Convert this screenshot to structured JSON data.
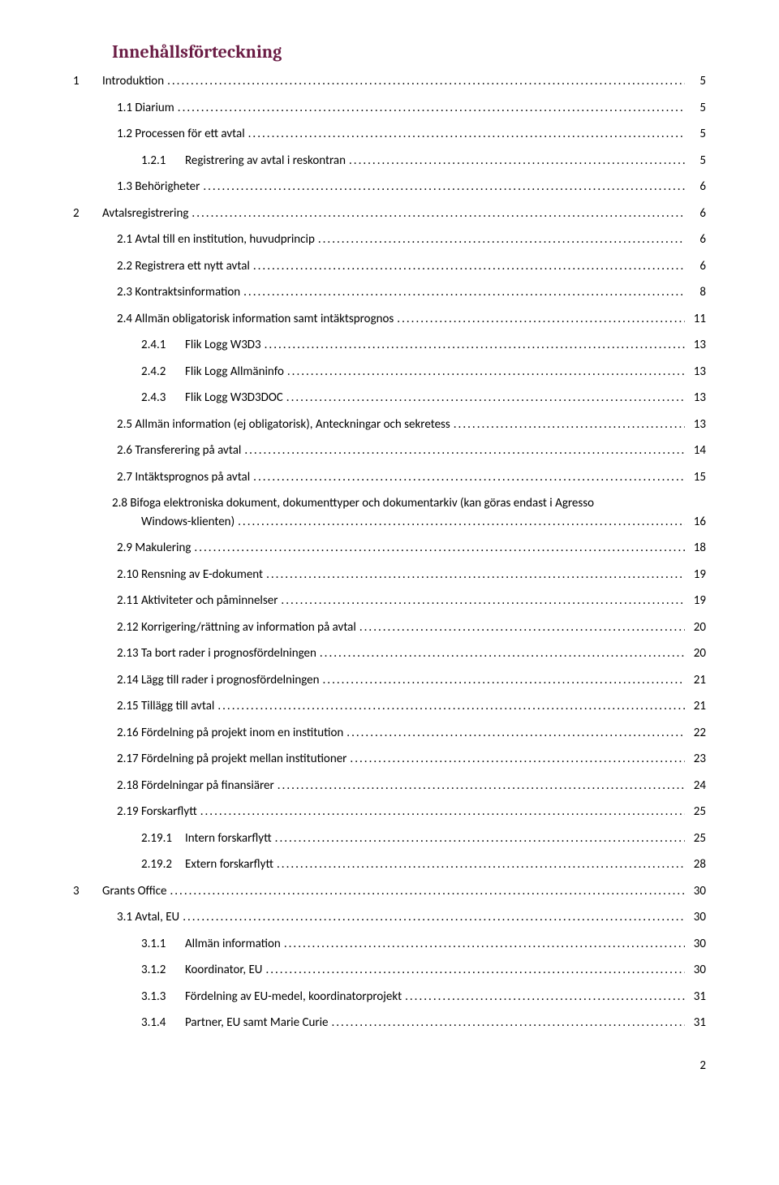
{
  "title": "Innehållsförteckning",
  "title_color": "#6b1d45",
  "text_color": "#000000",
  "background_color": "#ffffff",
  "font_body": "Calibri",
  "font_title": "Cambria",
  "font_title_size": 22,
  "font_body_size": 15,
  "footer_page_number": "2",
  "entries": [
    {
      "level": 0,
      "num": "1",
      "label": "Introduktion",
      "page": "5"
    },
    {
      "level": 1,
      "num": "1.1",
      "label": "Diarium",
      "page": "5"
    },
    {
      "level": 1,
      "num": "1.2",
      "label": "Processen för ett avtal",
      "page": "5"
    },
    {
      "level": 2,
      "num": "1.2.1",
      "label": "Registrering av avtal i reskontran",
      "page": "5"
    },
    {
      "level": 1,
      "num": "1.3",
      "label": "Behörigheter",
      "page": "6"
    },
    {
      "level": 0,
      "num": "2",
      "label": "Avtalsregistrering",
      "page": "6"
    },
    {
      "level": 1,
      "num": "2.1",
      "label": "Avtal till en institution, huvudprincip",
      "page": "6"
    },
    {
      "level": 1,
      "num": "2.2",
      "label": "Registrera ett nytt avtal",
      "page": "6"
    },
    {
      "level": 1,
      "num": "2.3",
      "label": "Kontraktsinformation",
      "page": "8"
    },
    {
      "level": 1,
      "num": "2.4",
      "label": "Allmän obligatorisk information samt intäktsprognos",
      "page": "11"
    },
    {
      "level": 2,
      "num": "2.4.1",
      "label": "Flik Logg W3D3",
      "page": "13"
    },
    {
      "level": 2,
      "num": "2.4.2",
      "label": "Flik Logg Allmäninfo",
      "page": "13"
    },
    {
      "level": 2,
      "num": "2.4.3",
      "label": "Flik Logg W3D3DOC",
      "page": "13"
    },
    {
      "level": 1,
      "num": "2.5",
      "label": "Allmän information (ej obligatorisk), Anteckningar och sekretess",
      "page": "13"
    },
    {
      "level": 1,
      "num": "2.6",
      "label": "Transferering på avtal",
      "page": "14"
    },
    {
      "level": 1,
      "num": "2.7",
      "label": "Intäktsprognos på avtal",
      "page": "15"
    },
    {
      "level": 1,
      "num": "2.8",
      "label": "Bifoga elektroniska dokument, dokumenttyper och dokumentarkiv (kan göras endast i Agresso Windows-klienten)",
      "page": "16",
      "multiline": true
    },
    {
      "level": 1,
      "num": "2.9",
      "label": "Makulering",
      "page": "18"
    },
    {
      "level": 1,
      "num": "2.10",
      "label": "Rensning av E-dokument",
      "page": "19"
    },
    {
      "level": 1,
      "num": "2.11",
      "label": "Aktiviteter och påminnelser",
      "page": "19"
    },
    {
      "level": 1,
      "num": "2.12",
      "label": "Korrigering/rättning av information på avtal",
      "page": "20"
    },
    {
      "level": 1,
      "num": "2.13",
      "label": "Ta bort rader i prognosfördelningen",
      "page": "20"
    },
    {
      "level": 1,
      "num": "2.14",
      "label": "Lägg till rader i prognosfördelningen",
      "page": "21"
    },
    {
      "level": 1,
      "num": "2.15",
      "label": "Tillägg till avtal",
      "page": "21"
    },
    {
      "level": 1,
      "num": "2.16",
      "label": "Fördelning på projekt inom en institution",
      "page": "22"
    },
    {
      "level": 1,
      "num": "2.17",
      "label": "Fördelning på projekt mellan institutioner",
      "page": "23"
    },
    {
      "level": 1,
      "num": "2.18",
      "label": "Fördelningar på finansiärer",
      "page": "24"
    },
    {
      "level": 1,
      "num": "2.19",
      "label": "Forskarflytt",
      "page": "25"
    },
    {
      "level": 2,
      "num": "2.19.1",
      "label": "Intern forskarflytt",
      "page": "25"
    },
    {
      "level": 2,
      "num": "2.19.2",
      "label": "Extern forskarflytt",
      "page": "28"
    },
    {
      "level": 0,
      "num": "3",
      "label": "Grants Office",
      "page": "30"
    },
    {
      "level": 1,
      "num": "3.1",
      "label": "Avtal, EU",
      "page": "30"
    },
    {
      "level": 2,
      "num": "3.1.1",
      "label": "Allmän information",
      "page": "30"
    },
    {
      "level": 2,
      "num": "3.1.2",
      "label": "Koordinator, EU",
      "page": "30"
    },
    {
      "level": 2,
      "num": "3.1.3",
      "label": "Fördelning av EU-medel, koordinatorprojekt",
      "page": "31"
    },
    {
      "level": 2,
      "num": "3.1.4",
      "label": "Partner, EU samt Marie Curie",
      "page": "31"
    }
  ]
}
